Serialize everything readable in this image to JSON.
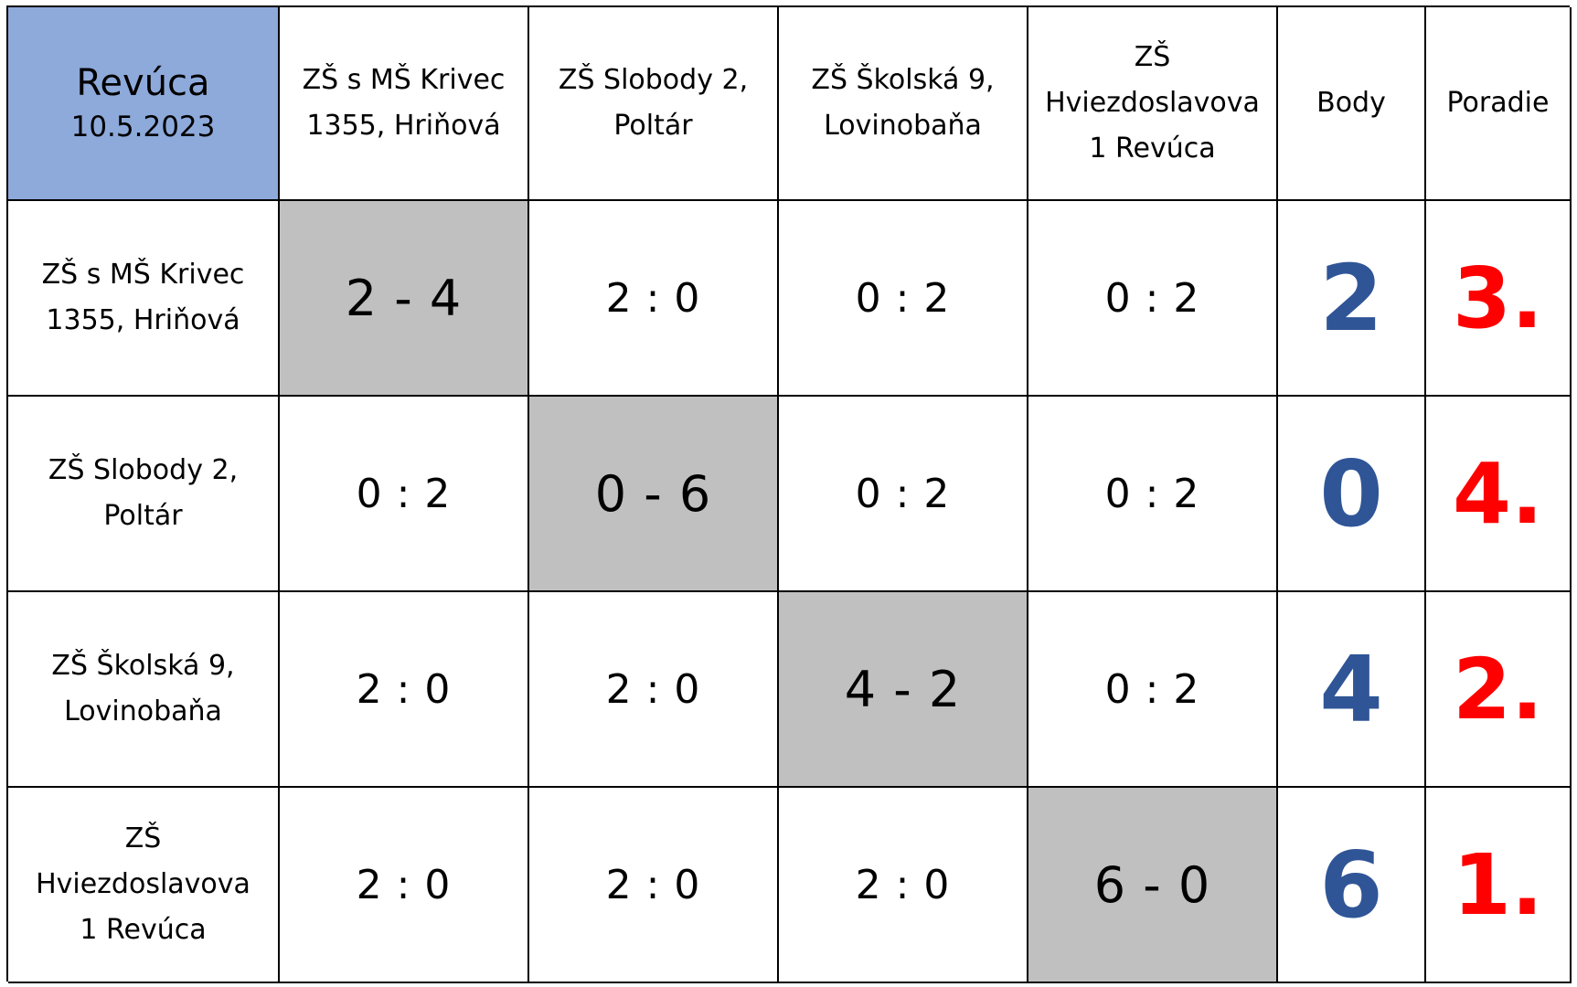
{
  "corner": {
    "city": "Revúca",
    "date": "10.5.2023"
  },
  "columns": {
    "team1": [
      "ZŠ s MŠ Krivec",
      "1355, Hriňová"
    ],
    "team2": [
      "ZŠ Slobody 2,",
      "Poltár"
    ],
    "team3": [
      "ZŠ Školská 9,",
      "Lovinobaňa"
    ],
    "team4": [
      "ZŠ",
      "Hviezdoslavova",
      "1 Revúca"
    ],
    "points": "Body",
    "rank": "Poradie"
  },
  "rows": [
    {
      "team": [
        "ZŠ s MŠ Krivec",
        "1355, Hriňová"
      ],
      "results": [
        "2 - 4",
        "2 : 0",
        "0 : 2",
        "0 : 2"
      ],
      "points": "2",
      "rank": "3."
    },
    {
      "team": [
        "ZŠ Slobody 2,",
        "Poltár"
      ],
      "results": [
        "0 : 2",
        "0 - 6",
        "0 : 2",
        "0 : 2"
      ],
      "points": "0",
      "rank": "4."
    },
    {
      "team": [
        "ZŠ Školská 9,",
        "Lovinobaňa"
      ],
      "results": [
        "2 : 0",
        "2 : 0",
        "4 - 2",
        "0 : 2"
      ],
      "points": "4",
      "rank": "2."
    },
    {
      "team": [
        "ZŠ Hviezdoslavova",
        "1 Revúca"
      ],
      "results": [
        "2 : 0",
        "2 : 0",
        "2 : 0",
        "6 - 0"
      ],
      "points": "6",
      "rank": "1."
    }
  ],
  "colors": {
    "header_fill": "#8eaadb",
    "diagonal_fill": "#c0c0c0",
    "points_color": "#2f5597",
    "rank_color": "#ff0000"
  }
}
